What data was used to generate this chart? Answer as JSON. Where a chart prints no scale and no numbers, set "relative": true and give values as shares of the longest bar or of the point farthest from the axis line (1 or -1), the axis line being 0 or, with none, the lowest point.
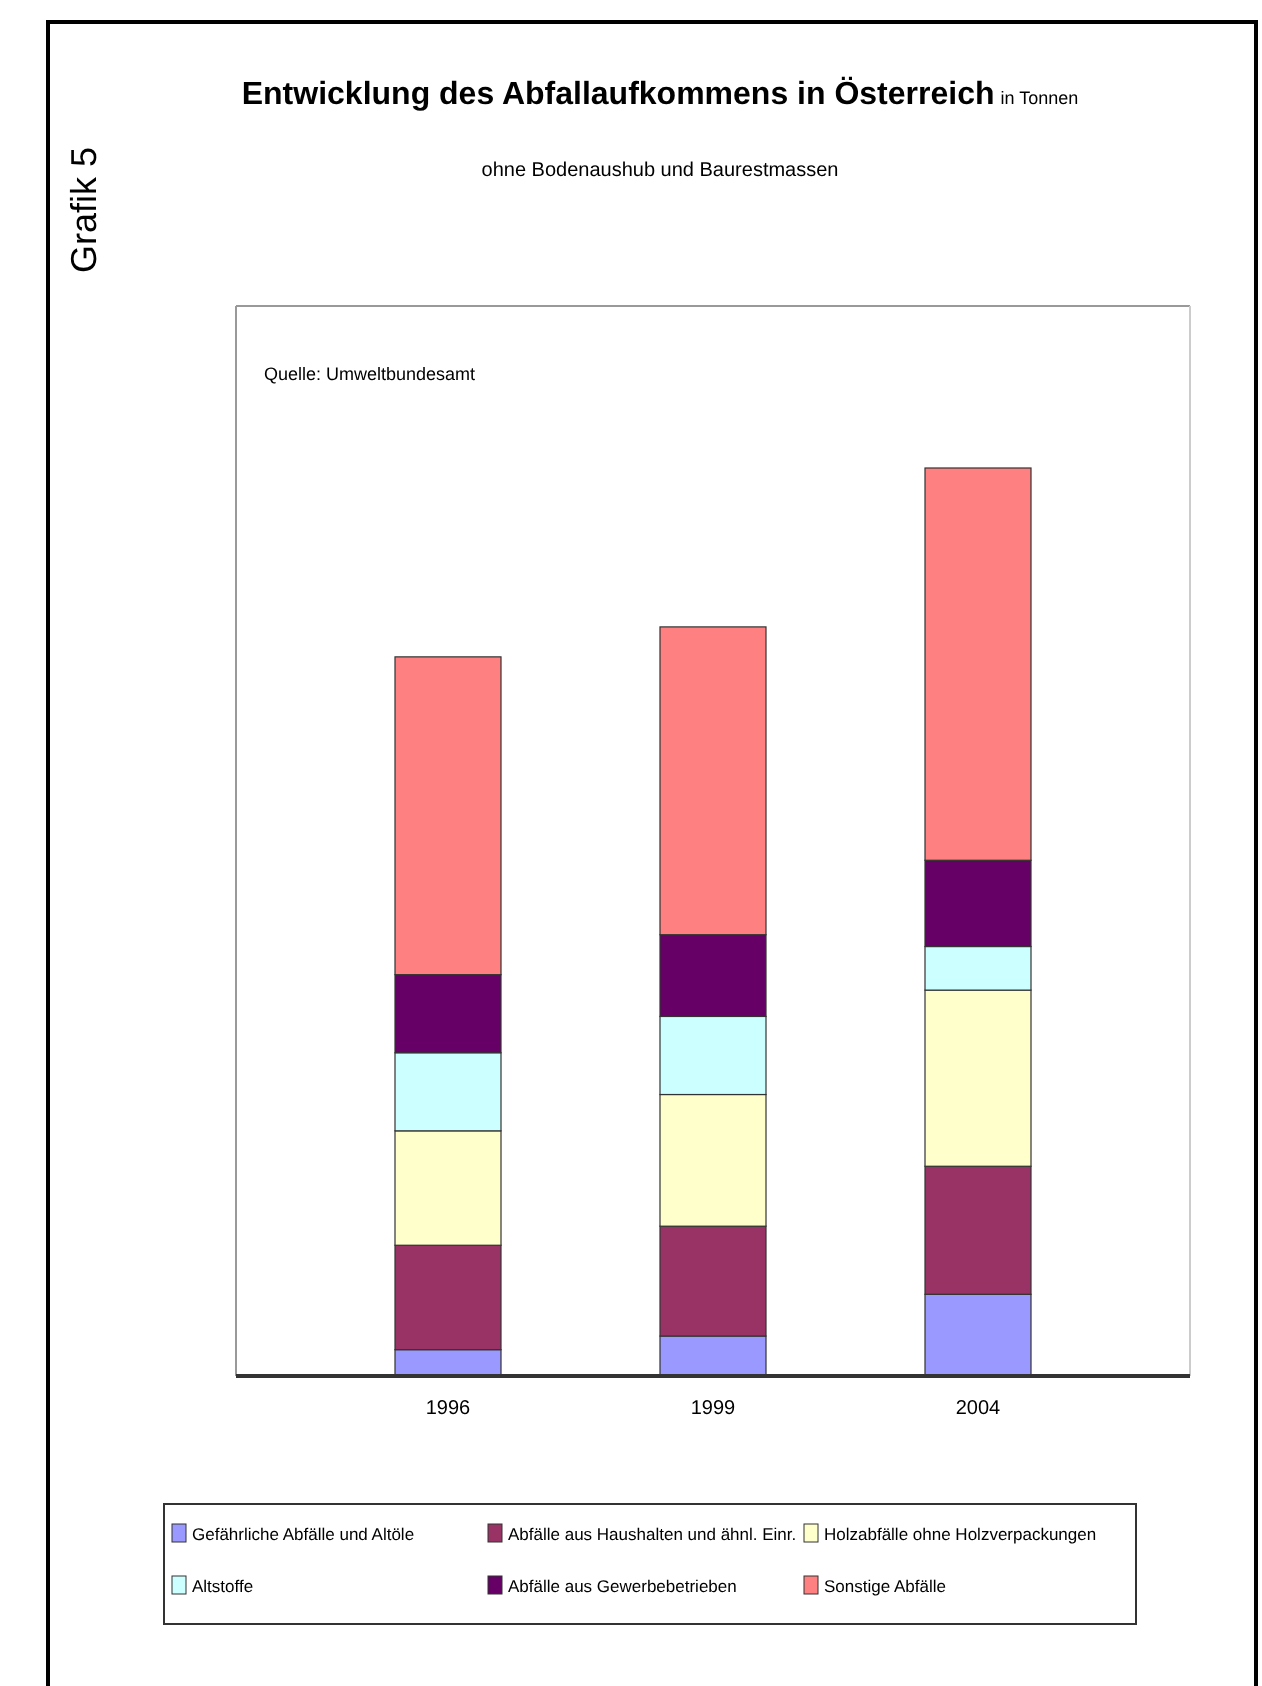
{
  "chart_data": {
    "type": "bar",
    "title": "Entwicklung des Abfallaufkommens in Österreich",
    "subtitle": "ohne Bodenaushub und Baurestmassen",
    "annotations": [
      "Grafik 5",
      "in Tonnen",
      "Quelle: Umweltbundesamt"
    ],
    "categories": [
      "1996",
      "1999",
      "2004"
    ],
    "stacked": true,
    "relative": true,
    "legend": "bottom",
    "series": [
      {
        "name": "Gefährliche Abfälle und Altöle",
        "color": "#9999ff",
        "values": [
          0.029,
          0.044,
          0.09
        ]
      },
      {
        "name": "Abfälle aus Haushalten und ähnl. Einr.",
        "color": "#993366",
        "values": [
          0.115,
          0.121,
          0.141
        ]
      },
      {
        "name": "Holzabfälle ohne Holzverpackungen",
        "color": "#ffffcc",
        "values": [
          0.126,
          0.145,
          0.194
        ]
      },
      {
        "name": "Altstoffe",
        "color": "#ccffff",
        "values": [
          0.086,
          0.086,
          0.048
        ]
      },
      {
        "name": "Abfälle aus Gewerbebetrieben",
        "color": "#660066",
        "values": [
          0.086,
          0.09,
          0.095
        ]
      },
      {
        "name": "Sonstige Abfälle",
        "color": "#ff8080",
        "values": [
          0.35,
          0.339,
          0.432
        ]
      }
    ]
  }
}
